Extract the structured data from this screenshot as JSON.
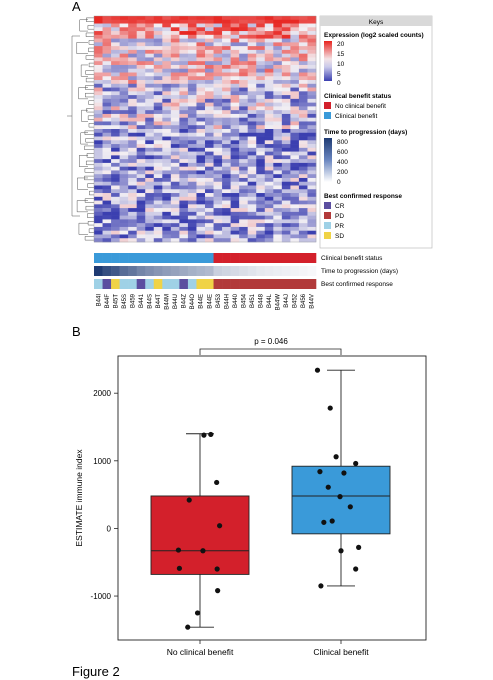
{
  "figure_caption": "Figure 2",
  "panel_a_label": "A",
  "panel_b_label": "B",
  "colors": {
    "no_benefit": "#d3202b",
    "clinical_benefit": "#3a9ad9",
    "heat_high": "#e8241f",
    "heat_mid": "#f3f0f4",
    "heat_low": "#3b3fb0",
    "ttp_dark": "#1f3b73",
    "resp_cr": "#5b4ea0",
    "resp_pd": "#b23a3a",
    "resp_pr": "#9fd1e6",
    "resp_sd": "#f0d346"
  },
  "chart_data": [
    {
      "type": "heatmap",
      "title": "",
      "samples": [
        "B44I",
        "B44F",
        "B45T",
        "B45S",
        "B459",
        "B441",
        "B44S",
        "B44T",
        "B44M",
        "B44U",
        "B44Z",
        "B44O",
        "B44E",
        "B44E",
        "B453",
        "B44H",
        "B440",
        "B454",
        "B451",
        "B448",
        "B44L",
        "B44W",
        "B44J",
        "B452",
        "B456",
        "B44V"
      ],
      "row_count": 60,
      "legend": {
        "title": "Keys",
        "expression": {
          "title": "Expression (log2 scaled counts)",
          "ticks": [
            "20",
            "15",
            "10",
            "5",
            "0"
          ]
        },
        "benefit": {
          "title": "Clinical benefit status",
          "items": [
            "No clinical benefit",
            "Clinical benefit"
          ]
        },
        "ttp": {
          "title": "Time to progression (days)",
          "ticks": [
            "800",
            "600",
            "400",
            "200",
            "0"
          ]
        },
        "response": {
          "title": "Best confirmed response",
          "items": [
            "CR",
            "PD",
            "PR",
            "SD"
          ]
        }
      },
      "annotation_labels": [
        "Clinical benefit status",
        "Time to progression (days)",
        "Best confirmed response"
      ],
      "benefit_status": [
        "Clinical benefit",
        "Clinical benefit",
        "Clinical benefit",
        "Clinical benefit",
        "Clinical benefit",
        "Clinical benefit",
        "Clinical benefit",
        "Clinical benefit",
        "Clinical benefit",
        "Clinical benefit",
        "Clinical benefit",
        "Clinical benefit",
        "Clinical benefit",
        "Clinical benefit",
        "No clinical benefit",
        "No clinical benefit",
        "No clinical benefit",
        "No clinical benefit",
        "No clinical benefit",
        "No clinical benefit",
        "No clinical benefit",
        "No clinical benefit",
        "No clinical benefit",
        "No clinical benefit",
        "No clinical benefit",
        "No clinical benefit"
      ],
      "time_to_progression": [
        800,
        720,
        680,
        600,
        560,
        500,
        460,
        430,
        400,
        380,
        350,
        320,
        300,
        280,
        190,
        170,
        150,
        130,
        110,
        90,
        80,
        70,
        60,
        50,
        40,
        30
      ],
      "best_response": [
        "PR",
        "CR",
        "SD",
        "PR",
        "PR",
        "CR",
        "PR",
        "SD",
        "PR",
        "PR",
        "CR",
        "PR",
        "SD",
        "SD",
        "PD",
        "PD",
        "PD",
        "PD",
        "PD",
        "PD",
        "PD",
        "PD",
        "PD",
        "PD",
        "PD",
        "PD"
      ]
    },
    {
      "type": "box",
      "title": "",
      "xlabel": "",
      "ylabel": "ESTIMATE immune index",
      "categories": [
        "No clinical benefit",
        "Clinical benefit"
      ],
      "ylim": [
        -1650,
        2550
      ],
      "yticks": [
        -1000,
        0,
        1000,
        2000
      ],
      "annotation": "p = 0.046",
      "boxes": [
        {
          "name": "No clinical benefit",
          "whisker_low": -1460,
          "q1": -680,
          "median": -330,
          "q3": 480,
          "whisker_high": 1400
        },
        {
          "name": "Clinical benefit",
          "whisker_low": -850,
          "q1": -80,
          "median": 480,
          "q3": 920,
          "whisker_high": 2340
        }
      ],
      "points": [
        [
          {
            "x": 0.22,
            "y": 1390
          },
          {
            "x": 0.08,
            "y": 1380
          },
          {
            "x": 0.34,
            "y": 680
          },
          {
            "x": -0.22,
            "y": 420
          },
          {
            "x": 0.4,
            "y": 40
          },
          {
            "x": -0.44,
            "y": -320
          },
          {
            "x": 0.06,
            "y": -330
          },
          {
            "x": 0.35,
            "y": -600
          },
          {
            "x": -0.42,
            "y": -590
          },
          {
            "x": 0.36,
            "y": -920
          },
          {
            "x": -0.05,
            "y": -1250
          },
          {
            "x": -0.25,
            "y": -1460
          }
        ],
        [
          {
            "x": -0.48,
            "y": 2340
          },
          {
            "x": -0.22,
            "y": 1780
          },
          {
            "x": -0.1,
            "y": 1060
          },
          {
            "x": 0.3,
            "y": 960
          },
          {
            "x": -0.43,
            "y": 840
          },
          {
            "x": 0.06,
            "y": 820
          },
          {
            "x": -0.26,
            "y": 610
          },
          {
            "x": -0.02,
            "y": 470
          },
          {
            "x": 0.19,
            "y": 320
          },
          {
            "x": -0.18,
            "y": 110
          },
          {
            "x": -0.35,
            "y": 90
          },
          {
            "x": 0.36,
            "y": -280
          },
          {
            "x": 0.0,
            "y": -330
          },
          {
            "x": 0.3,
            "y": -600
          },
          {
            "x": -0.41,
            "y": -850
          }
        ]
      ]
    }
  ]
}
